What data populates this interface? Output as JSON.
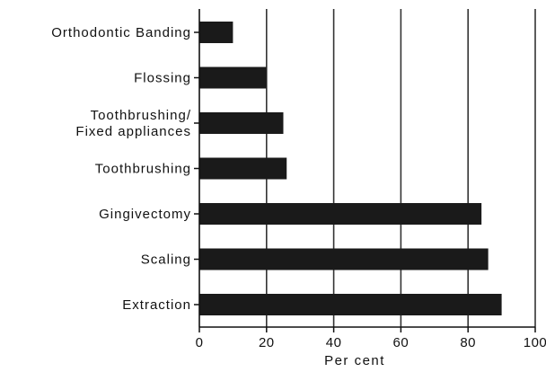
{
  "chart_data": {
    "type": "bar",
    "orientation": "horizontal",
    "title": "",
    "xlabel": "Per cent",
    "ylabel": "",
    "xlim": [
      0,
      100
    ],
    "x_ticks": [
      0,
      20,
      40,
      60,
      80,
      100
    ],
    "grid": "vertical",
    "categories": [
      {
        "lines": [
          "Orthodontic Banding"
        ],
        "value": 10
      },
      {
        "lines": [
          "Flossing"
        ],
        "value": 20
      },
      {
        "lines": [
          "Toothbrushing/",
          "Fixed appliances"
        ],
        "value": 25
      },
      {
        "lines": [
          "Toothbrushing"
        ],
        "value": 26
      },
      {
        "lines": [
          "Gingivectomy"
        ],
        "value": 84
      },
      {
        "lines": [
          "Scaling"
        ],
        "value": 86
      },
      {
        "lines": [
          "Extraction"
        ],
        "value": 90
      }
    ],
    "colors": {
      "bar": "#1a1a1a",
      "grid": "#333333",
      "axis": "#111111"
    }
  }
}
